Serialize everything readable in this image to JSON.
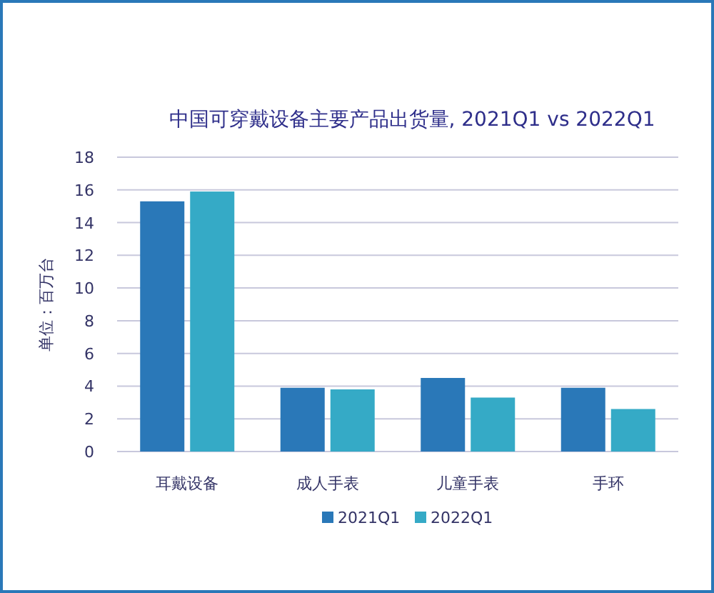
{
  "chart_data": {
    "type": "bar",
    "title": "中国可穿戴设备主要产品出货量, 2021Q1 vs 2022Q1",
    "ylabel": "单位：百万台",
    "categories": [
      "耳戴设备",
      "成人手表",
      "儿童手表",
      "手环"
    ],
    "series": [
      {
        "name": "2021Q1",
        "color": "#2a78b8",
        "values": [
          15.3,
          3.9,
          4.5,
          3.9
        ]
      },
      {
        "name": "2022Q1",
        "color": "#35aac6",
        "values": [
          15.9,
          3.8,
          3.3,
          2.6
        ]
      }
    ],
    "ylim": [
      0,
      18
    ],
    "yticks": [
      0,
      2,
      4,
      6,
      8,
      10,
      12,
      14,
      16,
      18
    ],
    "grid": "y",
    "legend": "bottom"
  }
}
